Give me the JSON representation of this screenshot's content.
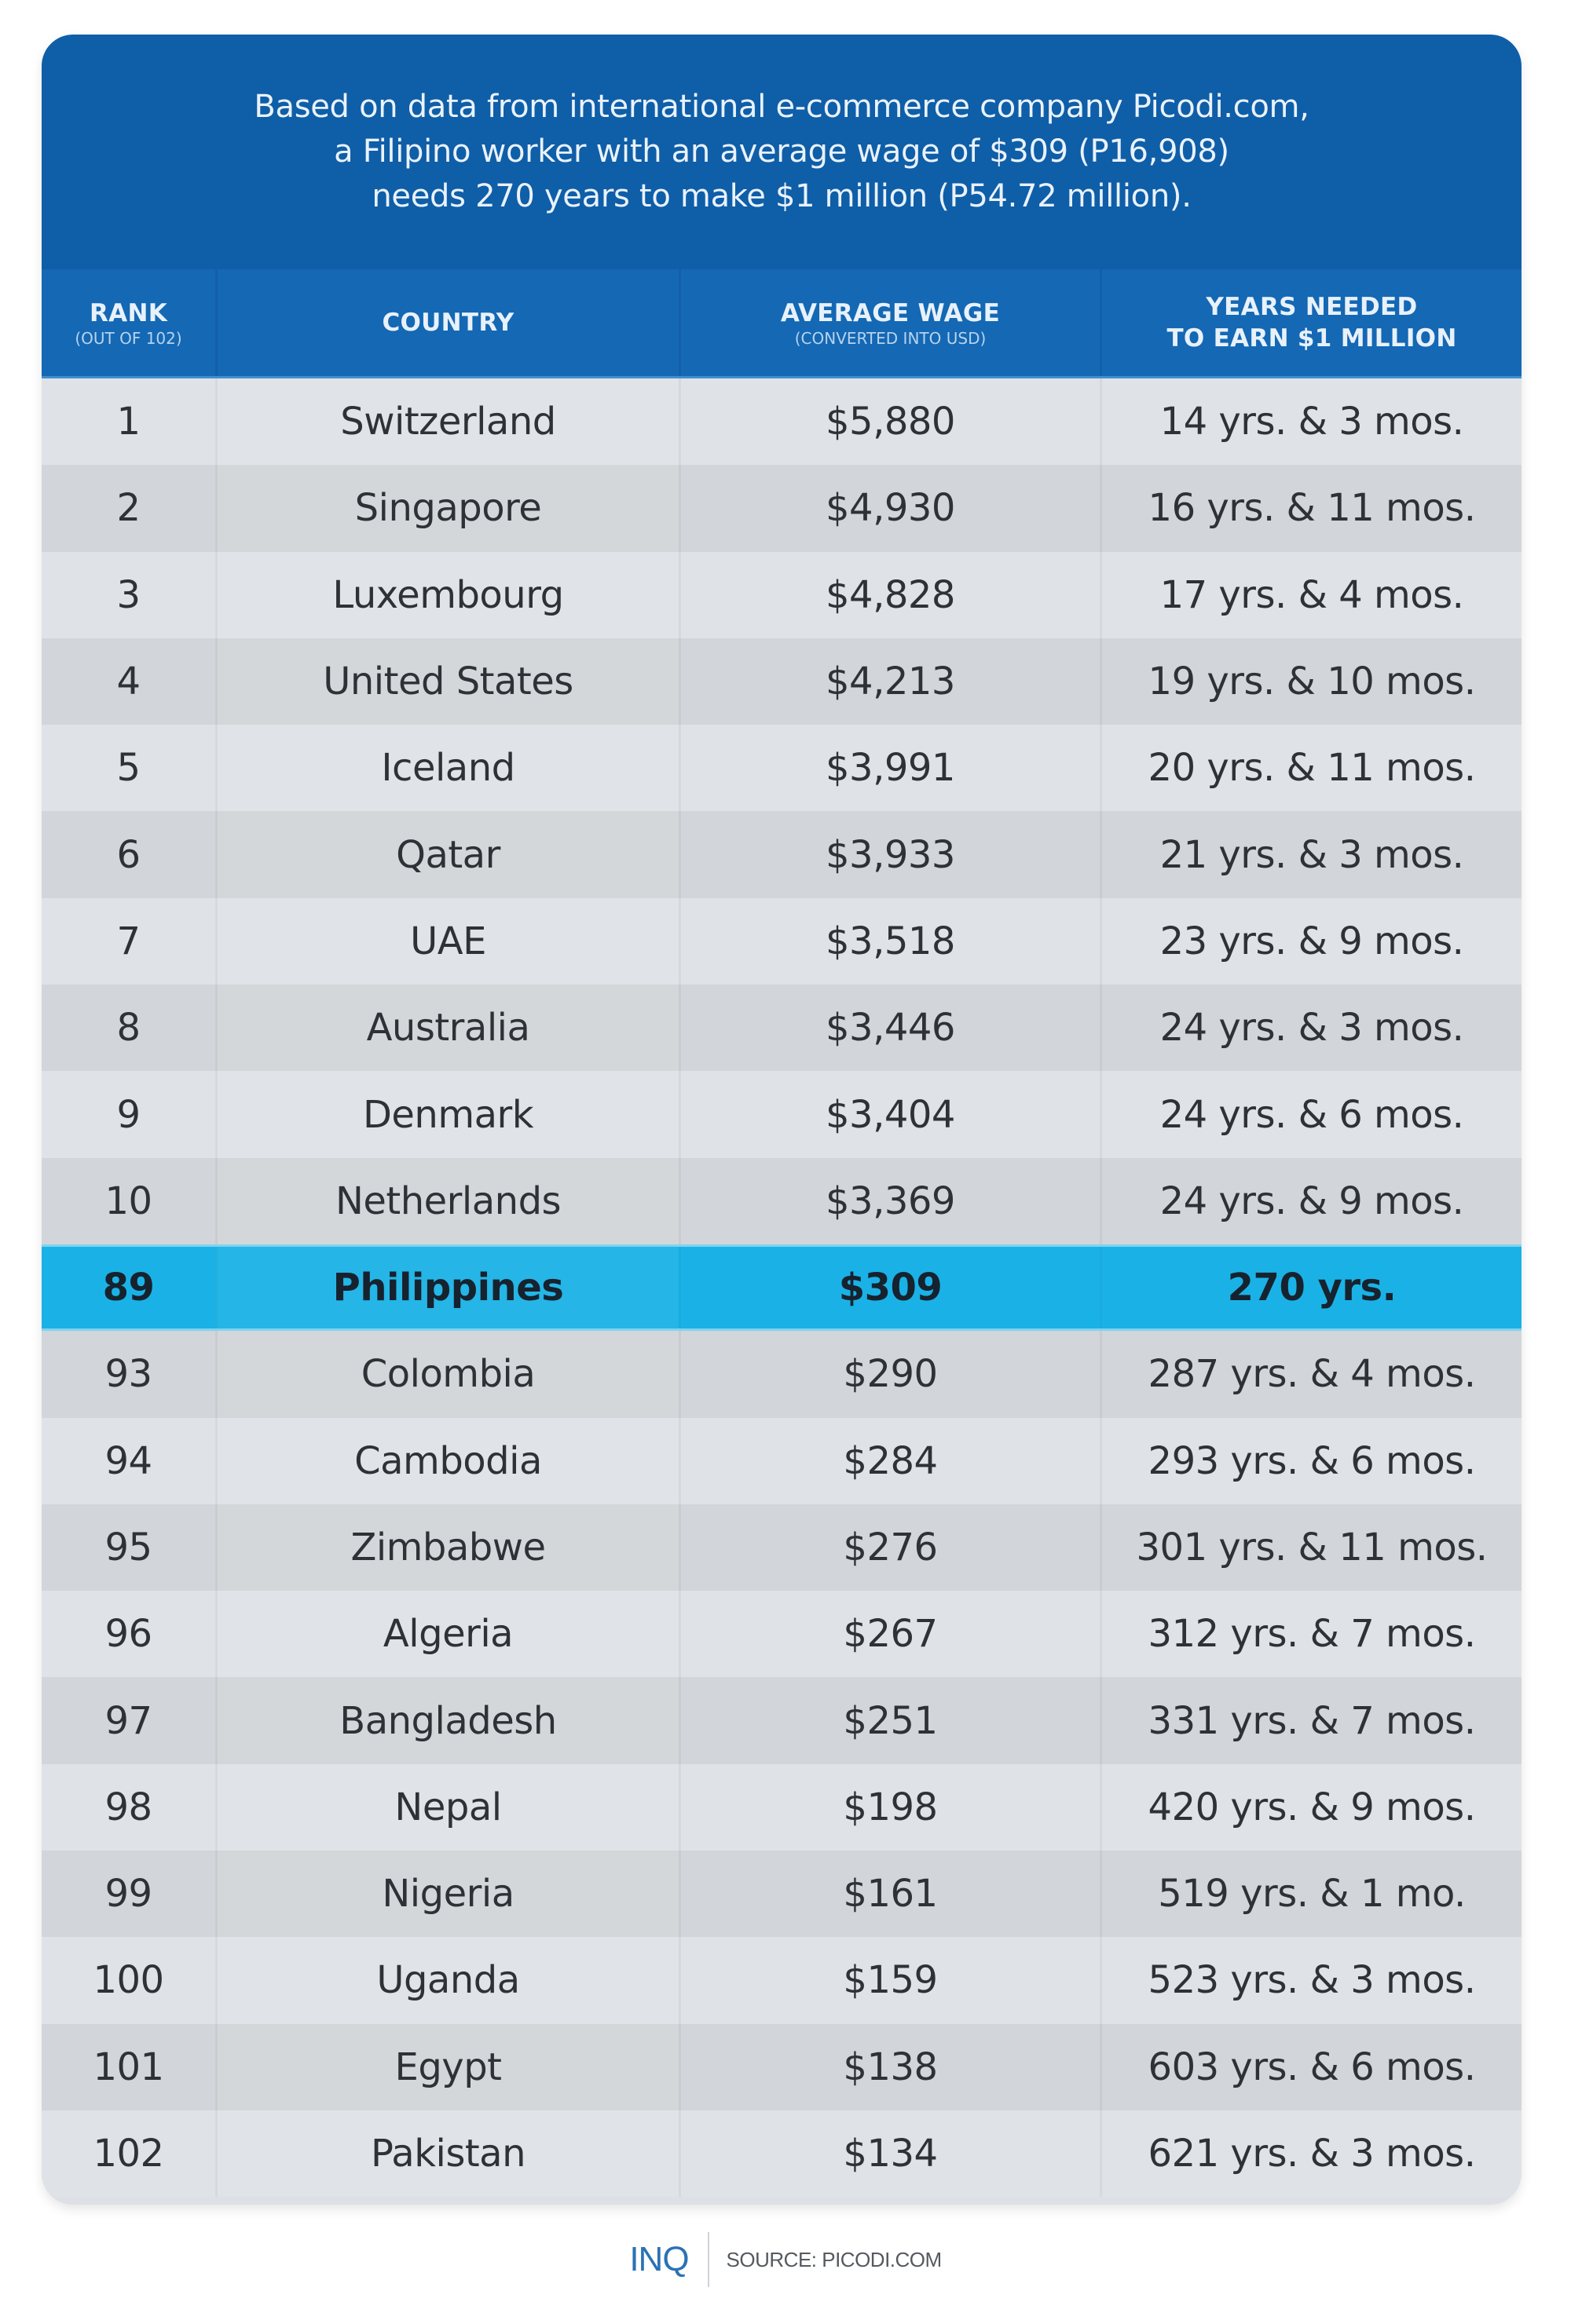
{
  "banner": {
    "lines": [
      "Based on data from international e-commerce company Picodi.com,",
      "a Filipino worker with an average wage of $309 (P16,908)",
      "needs 270 years to make $1 million (P54.72 million)."
    ]
  },
  "table": {
    "columns": [
      {
        "label": "RANK",
        "sublabel": "(OUT OF 102)"
      },
      {
        "label": "COUNTRY",
        "sublabel": ""
      },
      {
        "label": "AVERAGE WAGE",
        "sublabel": "(CONVERTED INTO USD)"
      },
      {
        "label": "YEARS NEEDED",
        "sublabel": "TO EARN $1 MILLION"
      }
    ],
    "rows": [
      {
        "rank": "1",
        "country": "Switzerland",
        "wage": "$5,880",
        "years": "14 yrs. & 3 mos."
      },
      {
        "rank": "2",
        "country": "Singapore",
        "wage": "$4,930",
        "years": "16 yrs. & 11 mos."
      },
      {
        "rank": "3",
        "country": "Luxembourg",
        "wage": "$4,828",
        "years": "17 yrs. & 4 mos."
      },
      {
        "rank": "4",
        "country": "United States",
        "wage": "$4,213",
        "years": "19 yrs. & 10 mos."
      },
      {
        "rank": "5",
        "country": "Iceland",
        "wage": "$3,991",
        "years": "20 yrs. & 11 mos."
      },
      {
        "rank": "6",
        "country": "Qatar",
        "wage": "$3,933",
        "years": "21 yrs. & 3 mos."
      },
      {
        "rank": "7",
        "country": "UAE",
        "wage": "$3,518",
        "years": "23 yrs. & 9 mos."
      },
      {
        "rank": "8",
        "country": "Australia",
        "wage": "$3,446",
        "years": "24 yrs. & 3 mos."
      },
      {
        "rank": "9",
        "country": "Denmark",
        "wage": "$3,404",
        "years": "24 yrs. & 6 mos."
      },
      {
        "rank": "10",
        "country": "Netherlands",
        "wage": "$3,369",
        "years": "24 yrs. & 9 mos."
      },
      {
        "rank": "89",
        "country": "Philippines",
        "wage": "$309",
        "years": "270 yrs.",
        "highlight": true
      },
      {
        "rank": "93",
        "country": "Colombia",
        "wage": "$290",
        "years": "287 yrs. & 4 mos."
      },
      {
        "rank": "94",
        "country": "Cambodia",
        "wage": "$284",
        "years": "293 yrs. & 6 mos."
      },
      {
        "rank": "95",
        "country": "Zimbabwe",
        "wage": "$276",
        "years": "301 yrs. & 11 mos."
      },
      {
        "rank": "96",
        "country": "Algeria",
        "wage": "$267",
        "years": "312 yrs. & 7 mos."
      },
      {
        "rank": "97",
        "country": "Bangladesh",
        "wage": "$251",
        "years": "331 yrs. & 7 mos."
      },
      {
        "rank": "98",
        "country": "Nepal",
        "wage": "$198",
        "years": "420 yrs. & 9 mos."
      },
      {
        "rank": "99",
        "country": "Nigeria",
        "wage": "$161",
        "years": "519 yrs. & 1 mo."
      },
      {
        "rank": "100",
        "country": "Uganda",
        "wage": "$159",
        "years": "523 yrs. & 3 mos."
      },
      {
        "rank": "101",
        "country": "Egypt",
        "wage": "$138",
        "years": "603 yrs. & 6 mos."
      },
      {
        "rank": "102",
        "country": "Pakistan",
        "wage": "$134",
        "years": "621 yrs. & 3 mos."
      }
    ]
  },
  "footer": {
    "logo": "INQ",
    "source": "SOURCE: PICODI.COM"
  },
  "colors": {
    "banner": "#0f5ea8",
    "header_row": "#1468b4",
    "highlight_row": "#1ab2e6",
    "row_light": "#dfe2e6",
    "row_dark": "#d2d5d9",
    "text": "#2e3236",
    "logo": "#2a72b5"
  }
}
